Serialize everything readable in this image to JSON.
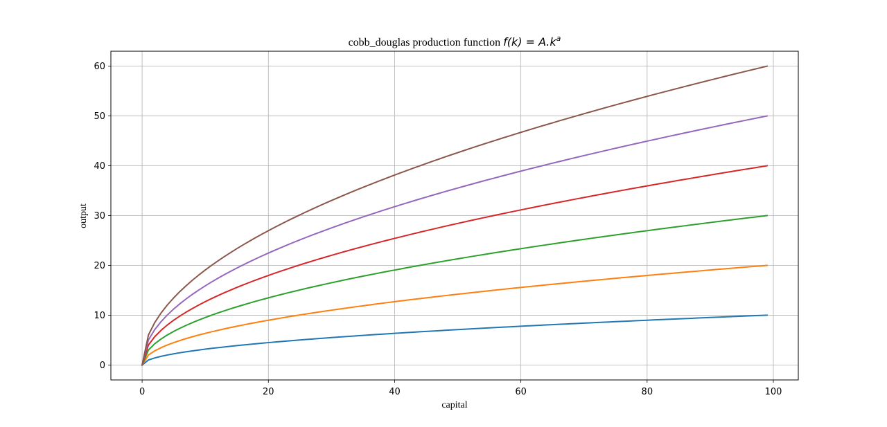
{
  "chart_data": {
    "type": "line",
    "title_text": "cobb_douglas production function ",
    "title_math": {
      "lhs": "f(k)",
      "eq": " = ",
      "rhs_base": "A.k",
      "rhs_exp": "a"
    },
    "xlabel": "capital",
    "ylabel": "output",
    "xlim": [
      -4.95,
      103.95
    ],
    "ylim": [
      -3.0,
      63.0
    ],
    "xticks": [
      0,
      20,
      40,
      60,
      80,
      100
    ],
    "yticks": [
      0,
      10,
      20,
      30,
      40,
      50,
      60
    ],
    "grid": true,
    "exponent": 0.5,
    "x_range": [
      0,
      99
    ],
    "series": [
      {
        "A": 1.005,
        "color": "#1f77b4"
      },
      {
        "A": 2.01,
        "color": "#ff7f0e"
      },
      {
        "A": 3.015,
        "color": "#2ca02c"
      },
      {
        "A": 4.02,
        "color": "#d62728"
      },
      {
        "A": 5.025,
        "color": "#9467bd"
      },
      {
        "A": 6.03,
        "color": "#8c564b"
      }
    ]
  }
}
